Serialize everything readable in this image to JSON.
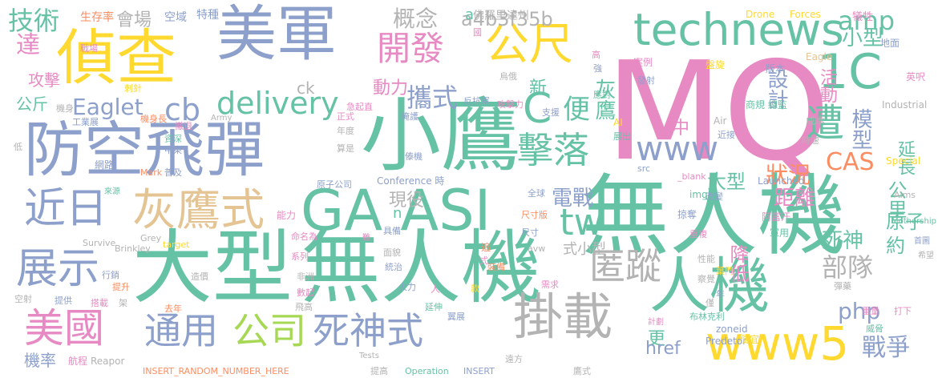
{
  "colors": {
    "teal": "#66C2A5",
    "blue": "#8DA0CB",
    "pink": "#E78AC3",
    "yellow": "#FFD92F",
    "gray": "#B3B3B3",
    "orange": "#FC8D62",
    "tan": "#E5C494",
    "green": "#A6D854"
  },
  "words": [
    {
      "text": "MQ",
      "color": "pink"
    },
    {
      "text": "無人機",
      "color": "teal"
    },
    {
      "text": "大型",
      "color": "teal"
    },
    {
      "text": "無人機",
      "color": "teal"
    },
    {
      "text": "小鷹",
      "color": "teal"
    },
    {
      "text": "偵查",
      "color": "yellow"
    },
    {
      "text": "美軍",
      "color": "blue"
    },
    {
      "text": "防空飛彈",
      "color": "blue"
    },
    {
      "text": "GA ASI",
      "color": "teal"
    },
    {
      "text": "人機",
      "color": "teal"
    },
    {
      "text": "掛載",
      "color": "gray"
    },
    {
      "text": "technews",
      "color": "teal"
    },
    {
      "text": "公尺",
      "color": "yellow"
    },
    {
      "text": "1C",
      "color": "teal"
    },
    {
      "text": "www5",
      "color": "yellow"
    },
    {
      "text": "灰鷹式",
      "color": "tan"
    },
    {
      "text": "近日",
      "color": "blue"
    },
    {
      "text": "展示",
      "color": "blue"
    },
    {
      "text": "美國",
      "color": "pink"
    },
    {
      "text": "通用",
      "color": "blue"
    },
    {
      "text": "公司",
      "color": "green"
    },
    {
      "text": "死神式",
      "color": "blue"
    },
    {
      "text": "匿蹤",
      "color": "gray"
    },
    {
      "text": "開發",
      "color": "pink"
    },
    {
      "text": "擊落",
      "color": "teal"
    },
    {
      "text": "遭",
      "color": "teal"
    },
    {
      "text": "www",
      "color": "blue"
    },
    {
      "text": "tw",
      "color": "teal"
    },
    {
      "text": "C",
      "color": "teal"
    },
    {
      "text": "delivery",
      "color": "teal"
    },
    {
      "text": "cb",
      "color": "blue"
    },
    {
      "text": "amp",
      "color": "teal"
    },
    {
      "text": "Eaglet",
      "color": "blue"
    },
    {
      "text": "技術",
      "color": "teal"
    },
    {
      "text": "達",
      "color": "pink"
    },
    {
      "text": "攜式",
      "color": "blue"
    },
    {
      "text": "便",
      "color": "teal"
    },
    {
      "text": "模型",
      "color": "blue"
    },
    {
      "text": "CAS",
      "color": "orange"
    },
    {
      "text": "php",
      "color": "blue"
    },
    {
      "text": "部隊",
      "color": "gray"
    },
    {
      "text": "戰爭",
      "color": "blue"
    },
    {
      "text": "設計",
      "color": "blue"
    },
    {
      "text": "概念",
      "color": "gray"
    },
    {
      "text": "a4b3f35b",
      "color": "gray"
    },
    {
      "text": "小型",
      "color": "teal"
    },
    {
      "text": "狀況",
      "color": "orange"
    },
    {
      "text": "電戰",
      "color": "blue"
    },
    {
      "text": "公里",
      "color": "teal"
    },
    {
      "text": "距離",
      "color": "pink"
    },
    {
      "text": "延長",
      "color": "teal"
    },
    {
      "text": "原子",
      "color": "teal"
    },
    {
      "text": "約",
      "color": "teal"
    },
    {
      "text": "降低",
      "color": "pink"
    },
    {
      "text": "死神",
      "color": "teal"
    },
    {
      "text": "活動",
      "color": "pink"
    },
    {
      "text": "現役",
      "color": "gray"
    },
    {
      "text": "更",
      "color": "teal"
    },
    {
      "text": "href",
      "color": "blue"
    },
    {
      "text": "式小型",
      "color": "gray"
    },
    {
      "text": "大型",
      "color": "teal"
    },
    {
      "text": "中",
      "color": "pink"
    },
    {
      "text": "新",
      "color": "teal"
    },
    {
      "text": "動力",
      "color": "pink"
    },
    {
      "text": "灰鷹",
      "color": "teal"
    },
    {
      "text": "會場",
      "color": "gray"
    },
    {
      "text": "攻擊",
      "color": "pink"
    },
    {
      "text": "公斤",
      "color": "teal"
    },
    {
      "text": "a",
      "color": "teal"
    },
    {
      "text": "佛羅里達州",
      "color": "gray"
    },
    {
      "text": "生存率",
      "color": "orange"
    },
    {
      "text": "空域",
      "color": "blue"
    },
    {
      "text": "特種",
      "color": "blue"
    },
    {
      "text": "ck",
      "color": "gray"
    },
    {
      "text": "n",
      "color": "teal"
    },
    {
      "text": "Drone",
      "color": "yellow"
    },
    {
      "text": "Forces",
      "color": "yellow"
    },
    {
      "text": "犧牲",
      "color": "pink"
    },
    {
      "text": "地面",
      "color": "blue"
    },
    {
      "text": "英呎",
      "color": "pink"
    },
    {
      "text": "Eagle",
      "color": "tan"
    },
    {
      "text": "版本",
      "color": "blue"
    },
    {
      "text": "商規 總監",
      "color": "teal"
    },
    {
      "text": "Industrial",
      "color": "gray"
    },
    {
      "text": "成本",
      "color": "gray"
    },
    {
      "text": "時速",
      "color": "gray"
    },
    {
      "text": "Special",
      "color": "yellow"
    },
    {
      "text": "Aims",
      "color": "gray"
    },
    {
      "text": "Mothership",
      "color": "teal"
    },
    {
      "text": "Launched",
      "color": "blue"
    },
    {
      "text": "阿富汗",
      "color": "pink"
    },
    {
      "text": "軍用",
      "color": "teal"
    },
    {
      "text": "首圖",
      "color": "blue"
    },
    {
      "text": "希望",
      "color": "gray"
    },
    {
      "text": "彈藥",
      "color": "gray"
    },
    {
      "text": "重量",
      "color": "pink"
    },
    {
      "text": "威脅",
      "color": "teal"
    },
    {
      "text": "打下",
      "color": "pink"
    },
    {
      "text": "zoneid",
      "color": "blue"
    },
    {
      "text": "Predetor",
      "color": "blue"
    },
    {
      "text": "布林克利",
      "color": "teal"
    },
    {
      "text": "計劃",
      "color": "pink"
    },
    {
      "text": "便宜",
      "color": "yellow"
    },
    {
      "text": "掠奪",
      "color": "blue"
    },
    {
      "text": "重複",
      "color": "pink"
    },
    {
      "text": "改變",
      "color": "blue"
    },
    {
      "text": "img",
      "color": "teal"
    },
    {
      "text": "_blank",
      "color": "pink"
    },
    {
      "text": "src",
      "color": "blue"
    },
    {
      "text": "AI",
      "color": "yellow"
    },
    {
      "text": "展出",
      "color": "teal"
    },
    {
      "text": "Air",
      "color": "gray"
    },
    {
      "text": "近接",
      "color": "blue"
    },
    {
      "text": "支援",
      "color": "blue"
    },
    {
      "text": "案例",
      "color": "pink"
    },
    {
      "text": "發射",
      "color": "blue"
    },
    {
      "text": "盤旋",
      "color": "yellow"
    },
    {
      "text": "高",
      "color": "pink"
    },
    {
      "text": "強",
      "color": "blue"
    },
    {
      "text": "應對",
      "color": "teal"
    },
    {
      "text": "攻擊力",
      "color": "pink"
    },
    {
      "text": "烏俄",
      "color": "gray"
    },
    {
      "text": "反抗軍",
      "color": "blue"
    },
    {
      "text": "掩護",
      "color": "blue"
    },
    {
      "text": "傣機",
      "color": "blue"
    },
    {
      "text": "Conference 時",
      "color": "blue"
    },
    {
      "text": "原子公司",
      "color": "blue"
    },
    {
      "text": "全球",
      "color": "blue"
    },
    {
      "text": "能力",
      "color": "pink"
    },
    {
      "text": "尺寸版",
      "color": "orange"
    },
    {
      "text": "尺寸",
      "color": "blue"
    },
    {
      "text": "avw",
      "color": "gray"
    },
    {
      "text": "具備",
      "color": "blue"
    },
    {
      "text": "難",
      "color": "pink"
    },
    {
      "text": "追",
      "color": "orange"
    },
    {
      "text": "式",
      "color": "pink"
    },
    {
      "text": "面貌",
      "color": "gray"
    },
    {
      "text": "統治",
      "color": "blue"
    },
    {
      "text": "火力",
      "color": "blue"
    },
    {
      "text": "裝備",
      "color": "orange"
    },
    {
      "text": "款",
      "color": "yellow"
    },
    {
      "text": "需求",
      "color": "pink"
    },
    {
      "text": "延伸",
      "color": "teal"
    },
    {
      "text": "翼展",
      "color": "blue"
    },
    {
      "text": "遠方",
      "color": "gray"
    },
    {
      "text": "性能",
      "color": "gray"
    },
    {
      "text": "葉門",
      "color": "yellow"
    },
    {
      "text": "察覺",
      "color": "gray"
    },
    {
      "text": "僅",
      "color": "gray"
    },
    {
      "text": "年",
      "color": "blue"
    },
    {
      "text": "數起",
      "color": "pink"
    },
    {
      "text": "飛高",
      "color": "gray"
    },
    {
      "text": "人",
      "color": "pink"
    },
    {
      "text": "系列",
      "color": "pink"
    },
    {
      "text": "非洲",
      "color": "gray"
    },
    {
      "text": "命名為",
      "color": "pink"
    },
    {
      "text": "造價",
      "color": "gray"
    },
    {
      "text": "Grey",
      "color": "gray"
    },
    {
      "text": "Brinkley",
      "color": "gray"
    },
    {
      "text": "target",
      "color": "yellow"
    },
    {
      "text": "Survive",
      "color": "gray"
    },
    {
      "text": "行銷",
      "color": "blue"
    },
    {
      "text": "提升",
      "color": "orange"
    },
    {
      "text": "提供",
      "color": "blue"
    },
    {
      "text": "搭載",
      "color": "pink"
    },
    {
      "text": "架",
      "color": "gray"
    },
    {
      "text": "去年",
      "color": "orange"
    },
    {
      "text": "空射",
      "color": "gray"
    },
    {
      "text": "機率",
      "color": "blue"
    },
    {
      "text": "航程",
      "color": "pink"
    },
    {
      "text": "Reapor",
      "color": "gray"
    },
    {
      "text": "INSERT_RANDOM_NUMBER_HERE",
      "color": "orange"
    },
    {
      "text": "Tests",
      "color": "gray"
    },
    {
      "text": "提高",
      "color": "gray"
    },
    {
      "text": "Operation",
      "color": "teal"
    },
    {
      "text": "INSERT",
      "color": "blue"
    },
    {
      "text": "鷹式",
      "color": "gray"
    },
    {
      "text": "網路",
      "color": "blue"
    },
    {
      "text": "Mark",
      "color": "orange"
    },
    {
      "text": "普及",
      "color": "blue"
    },
    {
      "text": "低",
      "color": "gray"
    },
    {
      "text": "資深",
      "color": "teal"
    },
    {
      "text": "中東",
      "color": "blue"
    },
    {
      "text": "撤退",
      "color": "pink"
    },
    {
      "text": "機身長",
      "color": "orange"
    },
    {
      "text": "工業展",
      "color": "blue"
    },
    {
      "text": "機身",
      "color": "gray"
    },
    {
      "text": "Army",
      "color": "gray"
    },
    {
      "text": "刺針",
      "color": "yellow"
    },
    {
      "text": "戰場",
      "color": "pink"
    },
    {
      "text": "年度",
      "color": "gray"
    },
    {
      "text": "正式",
      "color": "pink"
    },
    {
      "text": "急起直",
      "color": "pink"
    },
    {
      "text": "國",
      "color": "pink"
    },
    {
      "text": "算是",
      "color": "gray"
    },
    {
      "text": "來源",
      "color": "teal"
    }
  ]
}
